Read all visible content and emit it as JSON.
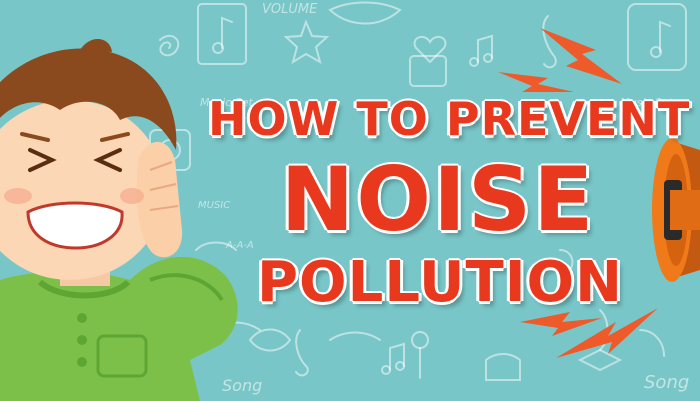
{
  "title": {
    "line1": "HOW TO PREVENT",
    "line2": "NOISE",
    "line3": "POLLUTION"
  },
  "background_doodles": {
    "volume": "VOLUME",
    "music_set_1": "Music Set",
    "music_set_2": "Music Set",
    "music": "MUSIC",
    "aaa": "A-A-A",
    "song_1": "Song",
    "song_2": "Song"
  },
  "colors": {
    "background": "#78c6c8",
    "title_red": "#e8391e",
    "shirt_green": "#7cc04a",
    "lightning_orange": "#ee5a2a",
    "megaphone_orange": "#f07a1a"
  },
  "icons": [
    "boy-covering-ears-illustration",
    "megaphone-icon",
    "lightning-bolt-icon",
    "music-note-icon",
    "star-icon",
    "heart-icon",
    "treble-clef-icon",
    "drum-icon"
  ]
}
